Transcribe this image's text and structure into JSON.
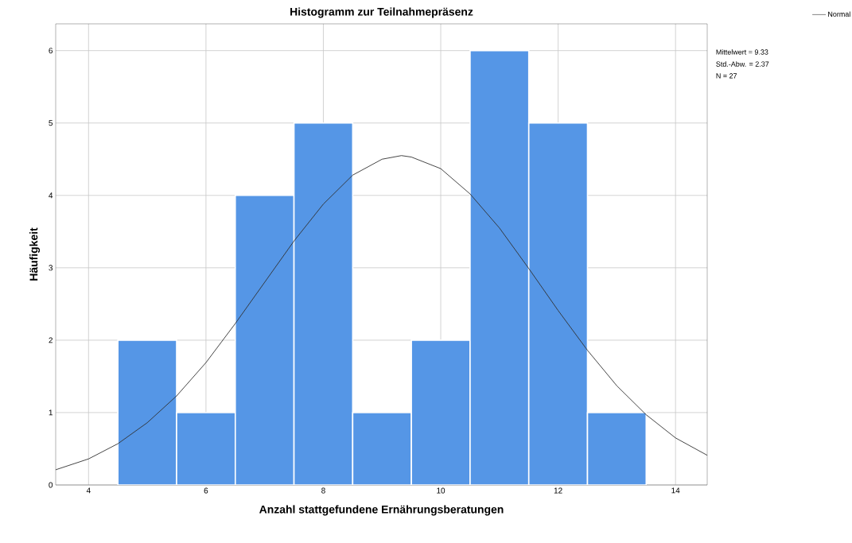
{
  "chart_data": {
    "type": "histogram",
    "title": "Histogramm zur Teilnahmepräsenz",
    "xlabel": "Anzahl stattgefundene Ernährungsberatungen",
    "ylabel": "Häufigkeit",
    "bins": [
      4.5,
      5.5,
      6.5,
      7.5,
      8.5,
      9.5,
      10.5,
      11.5,
      12.5,
      13.5
    ],
    "values": [
      2,
      1,
      4,
      5,
      1,
      2,
      6,
      5,
      1
    ],
    "color": "#5596e6",
    "series": [
      {
        "name": "Normal",
        "type": "line",
        "color": "#303030",
        "x": [
          3.44,
          4,
          4.5,
          5,
          5.5,
          6,
          6.5,
          7,
          7.5,
          8,
          8.5,
          9,
          9.33,
          9.5,
          10,
          10.5,
          11,
          11.5,
          12,
          12.5,
          13,
          13.5,
          14,
          14.54
        ],
        "values": [
          0.21,
          0.36,
          0.57,
          0.86,
          1.23,
          1.69,
          2.23,
          2.8,
          3.37,
          3.88,
          4.28,
          4.5,
          4.55,
          4.53,
          4.37,
          4.02,
          3.55,
          2.99,
          2.41,
          1.86,
          1.37,
          0.97,
          0.65,
          0.41
        ]
      }
    ],
    "xlim": [
      3.44,
      14.54
    ],
    "ylim": [
      0,
      6.37
    ],
    "xticks": [
      4,
      6,
      8,
      10,
      12,
      14
    ],
    "yticks": [
      0,
      1,
      2,
      3,
      4,
      5,
      6
    ],
    "grid": true,
    "legend": "top right",
    "annotations": [
      "Mittelwert = 9.33",
      "Std.-Abw. = 2.37",
      "N = 27"
    ]
  }
}
